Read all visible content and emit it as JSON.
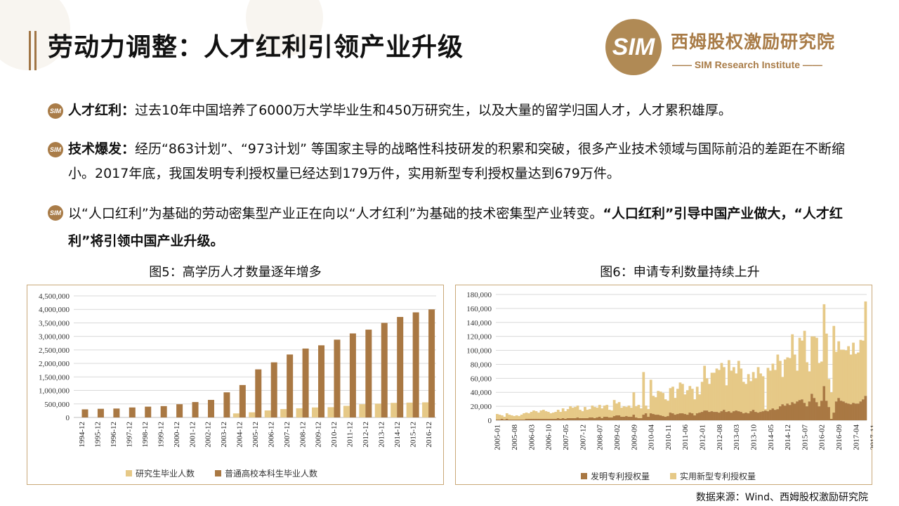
{
  "header": {
    "title": "劳动力调整：人才红利引领产业升级"
  },
  "logo": {
    "mark": "SIM",
    "name_cn": "西姆股权激励研究院",
    "name_en": "—— SIM Research Institute ——"
  },
  "bullets": [
    {
      "icon": "sim-logo-icon",
      "bold": "人才红利：",
      "text": "过去10年中国培养了6000万大学毕业生和450万研究生，以及大量的留学归国人才，人才累积雄厚。",
      "tail_bold": ""
    },
    {
      "icon": "sim-logo-icon",
      "bold": "技术爆发：",
      "text": "经历“863计划”、“973计划” 等国家主导的战略性科技研发的积累和突破，很多产业技术领域与国际前沿的差距在不断缩小。2017年底，我国发明专利授权量已经达到179万件，实用新型专利授权量达到679万件。",
      "tail_bold": ""
    },
    {
      "icon": "sim-logo-icon",
      "bold": "",
      "text": "以“人口红利”为基础的劳动密集型产业正在向以“人才红利”为基础的技术密集型产业转变。",
      "tail_bold": "“人口红利”引导中国产业做大，“人才红利”将引领中国产业升级。"
    }
  ],
  "source": "数据来源：Wind、西姆股权激励研究院",
  "colors": {
    "accent": "#a97c48",
    "dark_bar": "#a97843",
    "light_bar": "#e6c987"
  },
  "chart_data": [
    {
      "type": "bar",
      "title": "图5：高学历人才数量逐年增多",
      "categories": [
        "1994-12",
        "1995-12",
        "1996-12",
        "1997-12",
        "1998-12",
        "1999-12",
        "2000-12",
        "2001-12",
        "2002-12",
        "2003-12",
        "2004-12",
        "2005-12",
        "2006-12",
        "2007-12",
        "2008-12",
        "2009-12",
        "2010-12",
        "2011-12",
        "2012-12",
        "2013-12",
        "2014-12",
        "2015-12",
        "2016-12"
      ],
      "series": [
        {
          "name": "研究生毕业人数",
          "color": "#e6c987",
          "values": [
            null,
            null,
            null,
            null,
            null,
            null,
            null,
            null,
            null,
            null,
            150000,
            190000,
            260000,
            310000,
            340000,
            370000,
            380000,
            430000,
            490000,
            510000,
            540000,
            550000,
            560000
          ]
        },
        {
          "name": "普通高校本科生毕业人数",
          "color": "#a97843",
          "values": [
            300000,
            320000,
            330000,
            370000,
            400000,
            420000,
            490000,
            570000,
            650000,
            930000,
            1200000,
            1780000,
            2040000,
            2330000,
            2550000,
            2670000,
            2880000,
            3110000,
            3250000,
            3500000,
            3720000,
            3890000,
            4000000
          ]
        }
      ],
      "ylim": [
        0,
        4500000
      ],
      "yticks": [
        "4,500,000",
        "4,000,000",
        "3,500,000",
        "3,000,000",
        "2,500,000",
        "2,000,000",
        "1,500,000",
        "1,000,000",
        "500,000",
        "0"
      ],
      "grid": true,
      "legend": "bottom"
    },
    {
      "type": "bar-stacked",
      "title": "图6：申请专利数量持续上升",
      "start": "2005-01",
      "end": "2017-12",
      "xticks": [
        "2005-01",
        "2005-08",
        "2006-03",
        "2006-10",
        "2007-05",
        "2007-12",
        "2008-07",
        "2009-02",
        "2009-09",
        "2010-04",
        "2010-11",
        "2011-06",
        "2012-01",
        "2012-08",
        "2013-03",
        "2013-10",
        "2014-05",
        "2014-12",
        "2015-07",
        "2016-02",
        "2016-09",
        "2017-04",
        "2017-11"
      ],
      "series": [
        {
          "name": "发明专利授权量",
          "color": "#a97843",
          "values": [
            1000,
            1000,
            2000,
            1000,
            2000,
            1000,
            1000,
            1000,
            1000,
            1000,
            1000,
            1000,
            2000,
            2000,
            2000,
            2000,
            2000,
            2000,
            2000,
            2000,
            2000,
            2000,
            2000,
            2000,
            2000,
            3000,
            2000,
            3000,
            2000,
            3000,
            3000,
            3000,
            3000,
            4000,
            3000,
            3000,
            3000,
            3000,
            4000,
            4000,
            3000,
            4000,
            5000,
            3000,
            5000,
            5000,
            4000,
            4000,
            6000,
            7000,
            7000,
            5000,
            5000,
            6000,
            5000,
            5000,
            8000,
            4000,
            3000,
            3000,
            8000,
            10000,
            5000,
            10000,
            9000,
            8000,
            8000,
            7000,
            6000,
            5000,
            6000,
            11000,
            10000,
            8000,
            9000,
            10000,
            10000,
            9000,
            8000,
            11000,
            10000,
            7000,
            10000,
            11000,
            12000,
            14000,
            14000,
            12000,
            13000,
            12000,
            12000,
            11000,
            13000,
            15000,
            12000,
            13000,
            11000,
            13000,
            14000,
            13000,
            12000,
            10000,
            11000,
            10000,
            13000,
            15000,
            12000,
            11000,
            12000,
            13000,
            14000,
            13000,
            15000,
            17000,
            15000,
            16000,
            20000,
            23000,
            21000,
            24000,
            22000,
            26000,
            24000,
            27000,
            29000,
            30000,
            25000,
            20000,
            27000,
            38000,
            32000,
            26000,
            20000,
            28000,
            49000,
            28000,
            19000,
            2000,
            11000,
            27000,
            32000,
            28000,
            27000,
            25000,
            24000,
            23000,
            25000,
            24000,
            24000,
            27000,
            30000,
            35000
          ]
        },
        {
          "name": "实用新型专利授权量",
          "color": "#e6c987",
          "values": [
            8000,
            7000,
            5000,
            4000,
            8000,
            7000,
            6000,
            5000,
            6000,
            5000,
            7000,
            9000,
            9000,
            8000,
            10000,
            12000,
            11000,
            9000,
            12000,
            13000,
            11000,
            10000,
            8000,
            9000,
            10000,
            12000,
            10000,
            14000,
            11000,
            13000,
            17000,
            15000,
            16000,
            17000,
            12000,
            10000,
            16000,
            12000,
            12000,
            17000,
            16000,
            14000,
            17000,
            14000,
            16000,
            17000,
            11000,
            10000,
            23000,
            17000,
            19000,
            13000,
            15000,
            13000,
            16000,
            13000,
            32000,
            16000,
            19000,
            14000,
            61000,
            11000,
            11000,
            48000,
            26000,
            25000,
            34000,
            34000,
            33000,
            25000,
            22000,
            35000,
            38000,
            24000,
            36000,
            44000,
            42000,
            28000,
            35000,
            38000,
            35000,
            23000,
            38000,
            26000,
            43000,
            64000,
            46000,
            40000,
            55000,
            56000,
            62000,
            61000,
            69000,
            61000,
            38000,
            73000,
            60000,
            63000,
            53000,
            72000,
            62000,
            45000,
            41000,
            56000,
            43000,
            54000,
            48000,
            65000,
            55000,
            50000,
            2000,
            62000,
            56000,
            64000,
            57000,
            78000,
            65000,
            39000,
            66000,
            66000,
            67000,
            97000,
            70000,
            44000,
            89000,
            84000,
            103000,
            63000,
            43000,
            82000,
            88000,
            92000,
            62000,
            56000,
            117000,
            96000,
            40000,
            38000,
            124000,
            71000,
            81000,
            73000,
            74000,
            75000,
            82000,
            71000,
            86000,
            71000,
            73000,
            88000,
            84000,
            135000
          ]
        }
      ],
      "ylim": [
        0,
        180000
      ],
      "yticks": [
        "180,000",
        "160,000",
        "140,000",
        "120,000",
        "100,000",
        "80,000",
        "60,000",
        "40,000",
        "20,000",
        "0"
      ],
      "grid": true,
      "legend": "bottom"
    }
  ]
}
